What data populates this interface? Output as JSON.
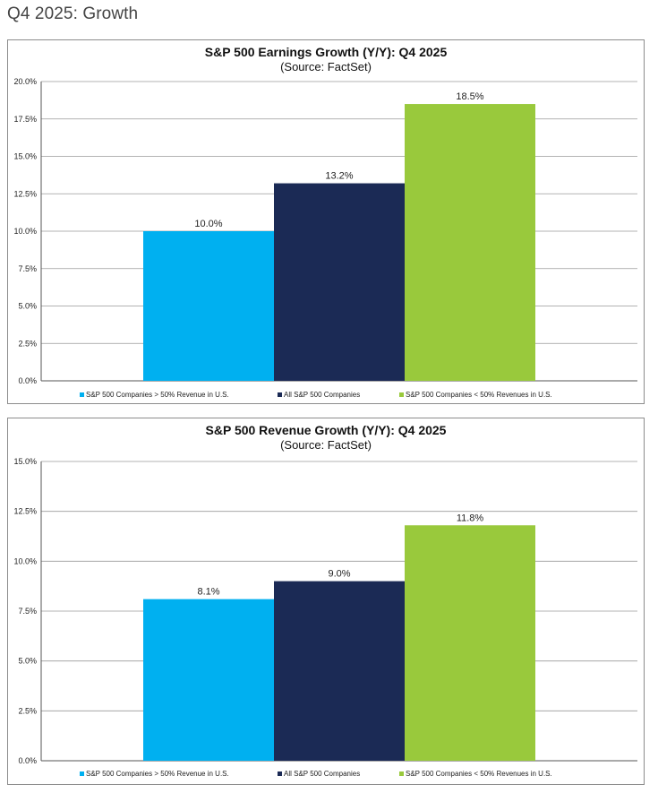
{
  "page": {
    "heading": "Q4 2025: Growth"
  },
  "colors": {
    "us_heavy": "#00B0F0",
    "all": "#1B2A55",
    "intl_heavy": "#99C93C",
    "grid": "#9a9a9a",
    "axis": "#555555"
  },
  "chart_data": [
    {
      "type": "bar",
      "title": "S&P 500 Earnings Growth (Y/Y): Q4 2025",
      "subtitle": "(Source: FactSet)",
      "xlabel": "",
      "ylabel": "",
      "ylim": [
        0,
        20
      ],
      "ytick_step": 2.5,
      "ytick_labels": [
        "0.0%",
        "2.5%",
        "5.0%",
        "7.5%",
        "10.0%",
        "12.5%",
        "15.0%",
        "17.5%",
        "20.0%"
      ],
      "grid": true,
      "legend_position": "bottom",
      "series": [
        {
          "name": "S&P 500 Companies > 50% Revenue in U.S.",
          "value": 10.0,
          "label": "10.0%",
          "color": "#00B0F0"
        },
        {
          "name": "All S&P 500 Companies",
          "value": 13.2,
          "label": "13.2%",
          "color": "#1B2A55"
        },
        {
          "name": "S&P 500 Companies < 50% Revenues in U.S.",
          "value": 18.5,
          "label": "18.5%",
          "color": "#99C93C"
        }
      ]
    },
    {
      "type": "bar",
      "title": "S&P 500 Revenue Growth (Y/Y): Q4 2025",
      "subtitle": "(Source: FactSet)",
      "xlabel": "",
      "ylabel": "",
      "ylim": [
        0,
        15
      ],
      "ytick_step": 2.5,
      "ytick_labels": [
        "0.0%",
        "2.5%",
        "5.0%",
        "7.5%",
        "10.0%",
        "12.5%",
        "15.0%"
      ],
      "grid": true,
      "legend_position": "bottom",
      "series": [
        {
          "name": "S&P 500 Companies > 50% Revenue in U.S.",
          "value": 8.1,
          "label": "8.1%",
          "color": "#00B0F0"
        },
        {
          "name": "All S&P 500 Companies",
          "value": 9.0,
          "label": "9.0%",
          "color": "#1B2A55"
        },
        {
          "name": "S&P 500 Companies < 50% Revenues in U.S.",
          "value": 11.8,
          "label": "11.8%",
          "color": "#99C93C"
        }
      ]
    }
  ]
}
